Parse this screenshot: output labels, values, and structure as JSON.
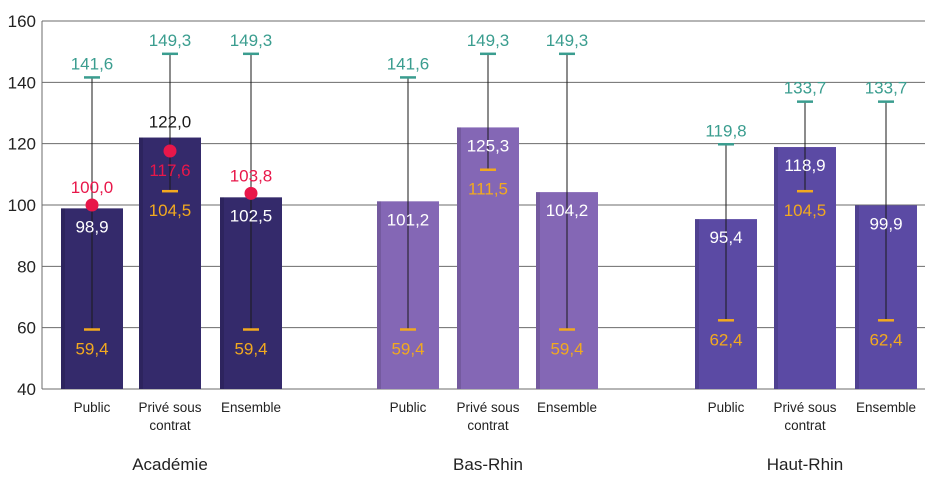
{
  "chart_data": {
    "type": "bar",
    "title": "",
    "xlabel": "",
    "ylabel": "",
    "ylim": [
      40,
      160
    ],
    "yticks": [
      "40",
      "60",
      "80",
      "100",
      "120",
      "140",
      "160"
    ],
    "grid": true,
    "legend": "none",
    "colors": {
      "academie": "#342a6b",
      "bas_rhin": "#8467b5",
      "haut_rhin": "#5b4aa4",
      "max": "#3a9d8f",
      "min": "#f2a91f",
      "reference": "#e8174a",
      "whisker": "#1a1a1a"
    },
    "groups": [
      {
        "name": "Académie",
        "key": "academie",
        "bars": [
          {
            "label": [
              "Public"
            ],
            "value": 98.9,
            "value_label": "98,9",
            "min": 59.4,
            "min_label": "59,4",
            "max": 141.6,
            "max_label": "141,6",
            "ref": 100.0,
            "ref_label": "100,0"
          },
          {
            "label": [
              "Privé sous",
              "contrat"
            ],
            "value": 122.0,
            "value_label": "122,0",
            "min": 104.5,
            "min_label": "104,5",
            "max": 149.3,
            "max_label": "149,3",
            "ref": 117.6,
            "ref_label": "117,6"
          },
          {
            "label": [
              "Ensemble"
            ],
            "value": 102.5,
            "value_label": "102,5",
            "min": 59.4,
            "min_label": "59,4",
            "max": 149.3,
            "max_label": "149,3",
            "ref": 103.8,
            "ref_label": "103,8"
          }
        ]
      },
      {
        "name": "Bas-Rhin",
        "key": "bas_rhin",
        "bars": [
          {
            "label": [
              "Public"
            ],
            "value": 101.2,
            "value_label": "101,2",
            "min": 59.4,
            "min_label": "59,4",
            "max": 141.6,
            "max_label": "141,6"
          },
          {
            "label": [
              "Privé sous",
              "contrat"
            ],
            "value": 125.3,
            "value_label": "125,3",
            "min": 111.5,
            "min_label": "111,5",
            "max": 149.3,
            "max_label": "149,3"
          },
          {
            "label": [
              "Ensemble"
            ],
            "value": 104.2,
            "value_label": "104,2",
            "min": 59.4,
            "min_label": "59,4",
            "max": 149.3,
            "max_label": "149,3"
          }
        ]
      },
      {
        "name": "Haut-Rhin",
        "key": "haut_rhin",
        "bars": [
          {
            "label": [
              "Public"
            ],
            "value": 95.4,
            "value_label": "95,4",
            "min": 62.4,
            "min_label": "62,4",
            "max": 119.8,
            "max_label": "119,8"
          },
          {
            "label": [
              "Privé sous",
              "contrat"
            ],
            "value": 118.9,
            "value_label": "118,9",
            "min": 104.5,
            "min_label": "104,5",
            "max": 133.7,
            "max_label": "133,7"
          },
          {
            "label": [
              "Ensemble"
            ],
            "value": 99.9,
            "value_label": "99,9",
            "min": 62.4,
            "min_label": "62,4",
            "max": 133.7,
            "max_label": "133,7"
          }
        ]
      }
    ]
  }
}
